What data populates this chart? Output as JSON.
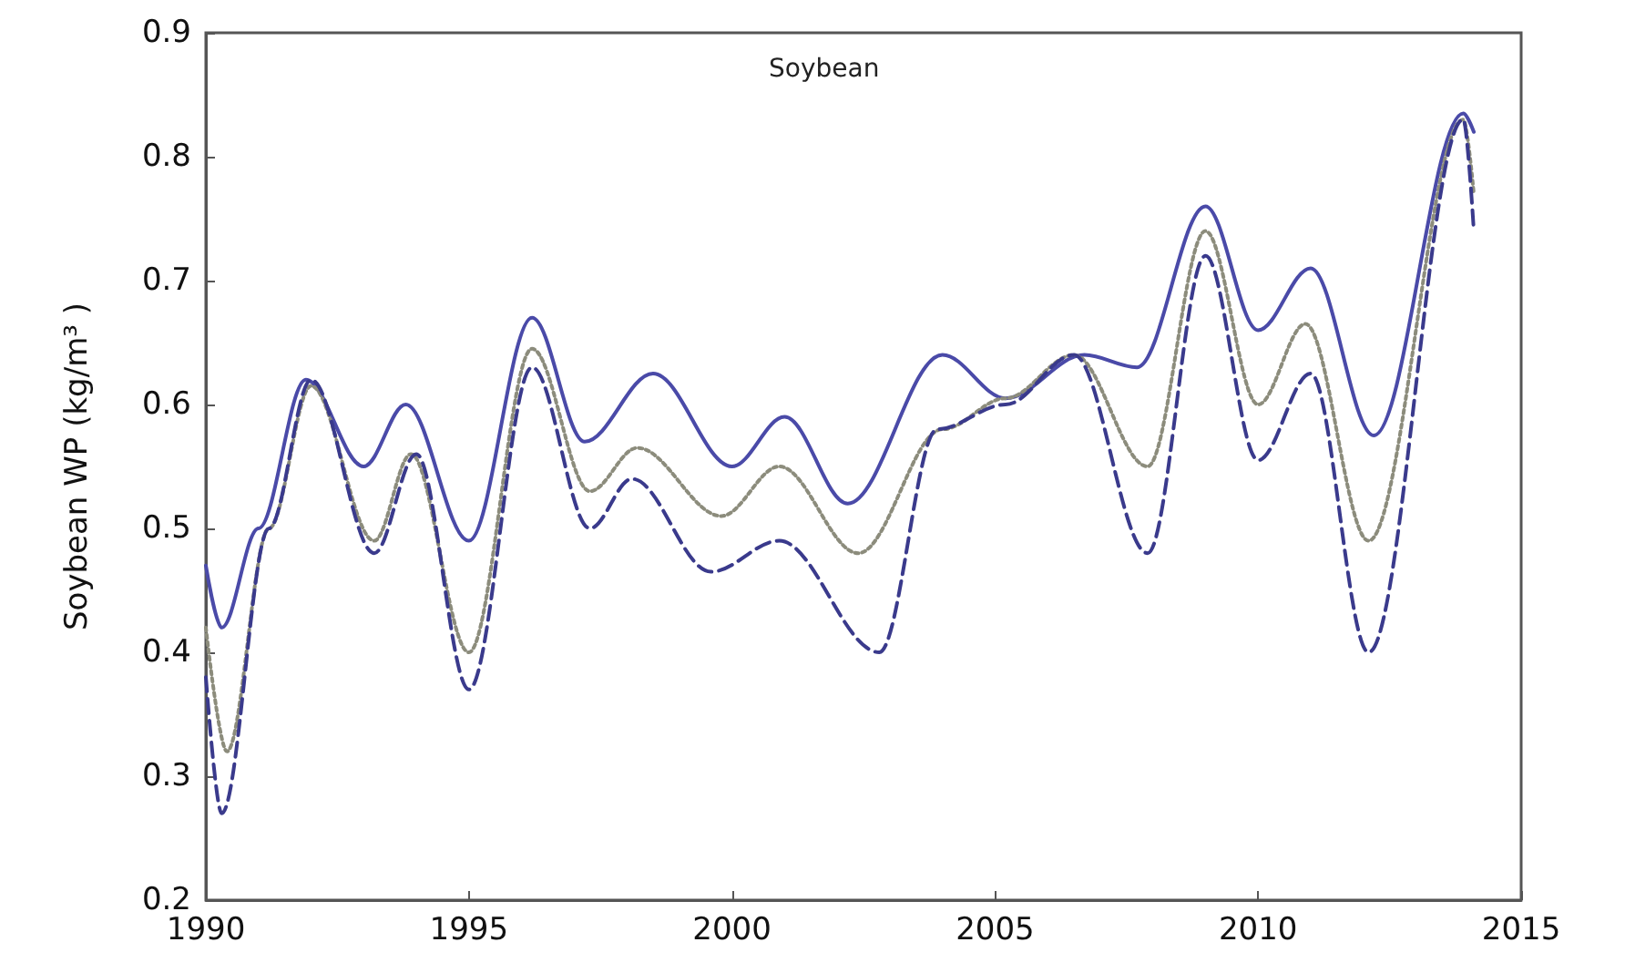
{
  "chart_data": {
    "type": "line",
    "title": "Soybean",
    "ylabel": "Soybean WP (kg/m³ )",
    "xlim": [
      1990,
      2015
    ],
    "xticks": [
      1990,
      1995,
      2000,
      2005,
      2010,
      2015
    ],
    "ylim": [
      0.2,
      0.9
    ],
    "yticks": [
      0.2,
      0.3,
      0.4,
      0.5,
      0.6,
      0.7,
      0.8,
      0.9
    ],
    "grid": false,
    "marker": "none",
    "series": [
      {
        "color": "#4a4aa8",
        "line_style": "solid",
        "x": [
          1990,
          1990.3,
          1991,
          1991.9,
          1993,
          1993.8,
          1995,
          1996.2,
          1997.2,
          1998.5,
          2000,
          2001,
          2002.2,
          2004,
          2005.2,
          2006.7,
          2007.7,
          2009,
          2010,
          2011,
          2012.2,
          2013.9,
          2014.1
        ],
        "values": [
          0.47,
          0.42,
          0.5,
          0.62,
          0.55,
          0.6,
          0.49,
          0.67,
          0.57,
          0.625,
          0.55,
          0.59,
          0.52,
          0.64,
          0.605,
          0.64,
          0.63,
          0.76,
          0.66,
          0.71,
          0.575,
          0.835,
          0.82
        ]
      },
      {
        "color": "#8c8c7c",
        "line_style": "dotted",
        "x": [
          1990,
          1990.4,
          1991.2,
          1992,
          1993.2,
          1993.9,
          1995,
          1996.2,
          1997.3,
          1998.2,
          1999.8,
          2000.9,
          2002.4,
          2004,
          2005.2,
          2006.5,
          2007.9,
          2009,
          2010,
          2010.9,
          2012.1,
          2013.9,
          2014.1
        ],
        "values": [
          0.42,
          0.32,
          0.5,
          0.615,
          0.49,
          0.56,
          0.4,
          0.645,
          0.53,
          0.565,
          0.51,
          0.55,
          0.48,
          0.58,
          0.605,
          0.64,
          0.55,
          0.74,
          0.6,
          0.665,
          0.49,
          0.83,
          0.77
        ]
      },
      {
        "color": "#3a3a8c",
        "line_style": "dashed",
        "x": [
          1990,
          1990.3,
          1991.2,
          1992,
          1993.2,
          1994,
          1995,
          1996.2,
          1997.3,
          1998.1,
          1999.6,
          2000.9,
          2002.8,
          2003.9,
          2005.2,
          2006.5,
          2007.9,
          2009,
          2010,
          2011,
          2012.1,
          2013.9,
          2014.1
        ],
        "values": [
          0.38,
          0.27,
          0.5,
          0.62,
          0.48,
          0.56,
          0.37,
          0.63,
          0.5,
          0.54,
          0.465,
          0.49,
          0.4,
          0.58,
          0.6,
          0.64,
          0.48,
          0.72,
          0.555,
          0.625,
          0.4,
          0.83,
          0.74
        ]
      }
    ]
  }
}
